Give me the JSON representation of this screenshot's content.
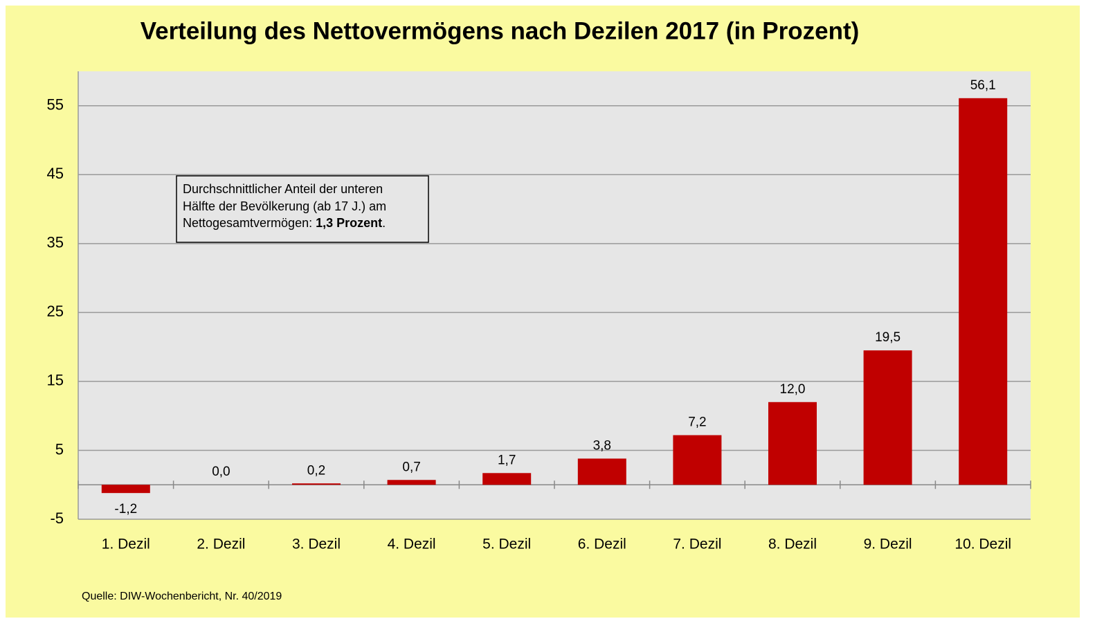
{
  "chart_data": {
    "type": "bar",
    "title": "Verteilung des Nettovermögens nach Dezilen 2017 (in Prozent)",
    "categories": [
      "1. Dezil",
      "2. Dezil",
      "3. Dezil",
      "4. Dezil",
      "5. Dezil",
      "6. Dezil",
      "7. Dezil",
      "8. Dezil",
      "9. Dezil",
      "10. Dezil"
    ],
    "values": [
      -1.2,
      0.0,
      0.2,
      0.7,
      1.7,
      3.8,
      7.2,
      12.0,
      19.5,
      56.1
    ],
    "value_labels": [
      "-1,2",
      "0,0",
      "0,2",
      "0,7",
      "1,7",
      "3,8",
      "7,2",
      "12,0",
      "19,5",
      "56,1"
    ],
    "color": "#c00000",
    "ylim": [
      -5,
      60
    ],
    "yticks": [
      -5,
      5,
      15,
      25,
      35,
      45,
      55
    ],
    "grid": true,
    "annotation": {
      "lines": [
        "Durchschnittlicher Anteil der unteren",
        "Hälfte der Bevölkerung (ab 17 J.) am",
        "Nettogesamtvermögen: "
      ],
      "emphasis": "1,3 Prozent",
      "end": "."
    },
    "source": "Quelle: DIW-Wochenbericht, Nr. 40/2019"
  }
}
